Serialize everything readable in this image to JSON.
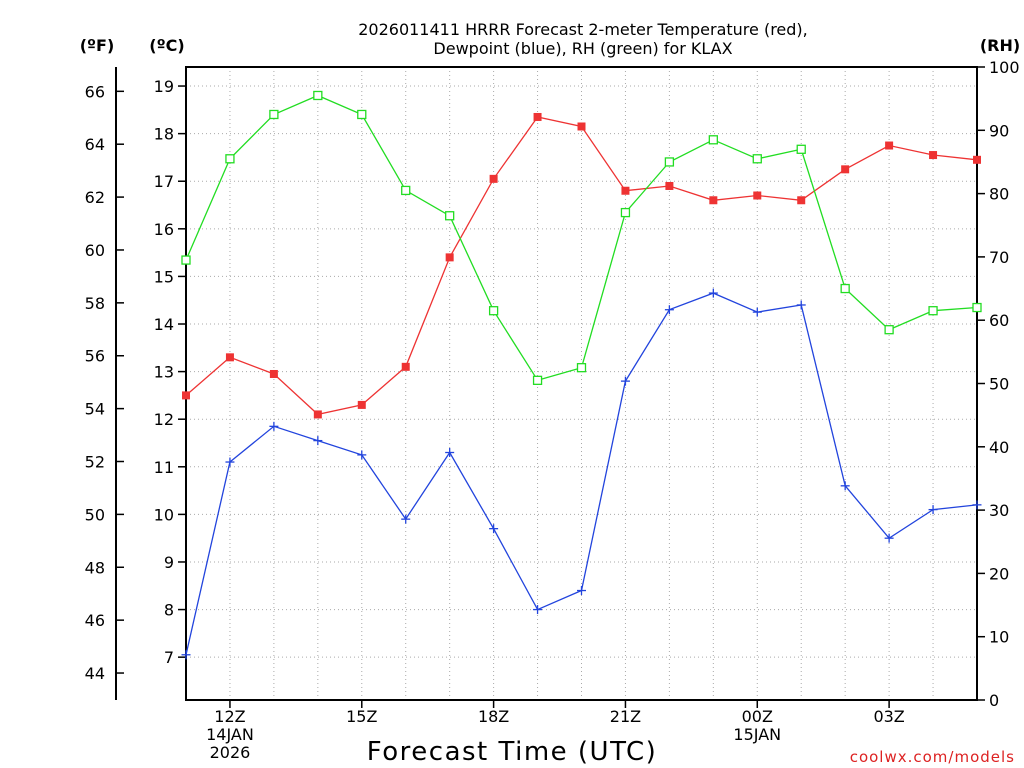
{
  "chart_data": {
    "type": "line",
    "title_line1": "2026011411 HRRR Forecast 2-meter Temperature (red),",
    "title_line2": "Dewpoint (blue), RH (green) for KLAX",
    "xlabel": "Forecast Time (UTC)",
    "left_outer_unit": "(ºF)",
    "left_inner_unit": "(ºC)",
    "right_unit": "(RH)",
    "credit": "coolwx.com/models",
    "x_hours": [
      11,
      12,
      13,
      14,
      15,
      16,
      17,
      18,
      19,
      20,
      21,
      22,
      23,
      24,
      25,
      26,
      27,
      28,
      29
    ],
    "x_range": [
      11,
      29
    ],
    "x_ticks": [
      {
        "hour": 12,
        "lines": [
          "12Z",
          "14JAN",
          "2026"
        ]
      },
      {
        "hour": 15,
        "lines": [
          "15Z"
        ]
      },
      {
        "hour": 18,
        "lines": [
          "18Z"
        ]
      },
      {
        "hour": 21,
        "lines": [
          "21Z"
        ]
      },
      {
        "hour": 24,
        "lines": [
          "00Z",
          "15JAN"
        ]
      },
      {
        "hour": 27,
        "lines": [
          "03Z"
        ]
      }
    ],
    "celsius_axis": {
      "range": [
        6.1,
        19.4
      ],
      "ticks": [
        "7",
        "8",
        "9",
        "10",
        "11",
        "12",
        "13",
        "14",
        "15",
        "16",
        "17",
        "18",
        "19"
      ]
    },
    "fahrenheit_axis": {
      "ticks": [
        "44",
        "46",
        "48",
        "50",
        "52",
        "54",
        "56",
        "58",
        "60",
        "62",
        "64",
        "66"
      ]
    },
    "rh_axis": {
      "range": [
        0,
        100
      ],
      "ticks": [
        "0",
        "10",
        "20",
        "30",
        "40",
        "50",
        "60",
        "70",
        "80",
        "90",
        "100"
      ]
    },
    "series": [
      {
        "name": "2-meter Temperature",
        "unit": "C",
        "color": "#ee3333",
        "marker": "filled-square",
        "values": [
          12.5,
          13.3,
          12.95,
          12.1,
          12.3,
          13.1,
          15.4,
          17.05,
          18.35,
          18.15,
          16.8,
          16.9,
          16.6,
          16.7,
          16.6,
          17.25,
          17.75,
          17.55,
          17.45
        ]
      },
      {
        "name": "Dewpoint",
        "unit": "C",
        "color": "#2244dd",
        "marker": "plus",
        "values": [
          7.05,
          11.1,
          11.85,
          11.55,
          11.25,
          9.9,
          11.3,
          9.7,
          8.0,
          8.4,
          12.8,
          14.3,
          14.65,
          14.25,
          14.4,
          10.6,
          9.5,
          10.1,
          10.2
        ]
      },
      {
        "name": "RH",
        "unit": "%",
        "color": "#22dd22",
        "marker": "open-square",
        "values": [
          69.5,
          85.5,
          92.5,
          95.5,
          92.5,
          80.5,
          76.5,
          61.5,
          50.5,
          52.5,
          77.0,
          85.0,
          88.5,
          85.5,
          87.0,
          65.0,
          58.5,
          61.5,
          62.0
        ]
      }
    ]
  }
}
